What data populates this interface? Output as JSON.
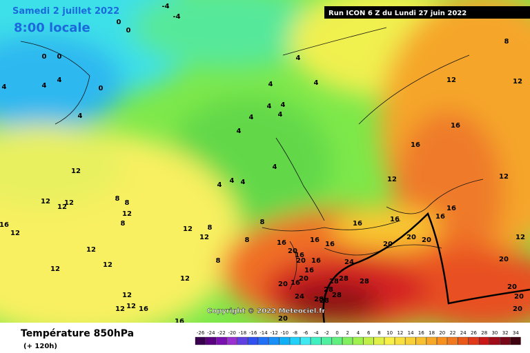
{
  "header": {
    "date": "Samedi 2 juillet 2022",
    "time": "8:00 locale",
    "run": "Run ICON 6 Z du Lundi 27 juin 2022"
  },
  "copyright": "Copyright © 2022 Meteociel.fr",
  "footer": {
    "title": "Température 850hPa",
    "subtitle": "(+ 120h)"
  },
  "legend": {
    "labels": [
      -26,
      -24,
      -22,
      -20,
      -18,
      -16,
      -14,
      -12,
      -10,
      -8,
      -6,
      -4,
      -2,
      0,
      2,
      4,
      6,
      8,
      10,
      12,
      14,
      16,
      18,
      20,
      22,
      24,
      26,
      28,
      30,
      32,
      34
    ]
  },
  "map": {
    "labels": [
      "-4",
      "-4",
      "0",
      "0",
      "0",
      "0",
      "4",
      "4",
      "4",
      "0",
      "4",
      "4",
      "4",
      "4",
      "4",
      "4",
      "4",
      "4",
      "4",
      "4",
      "4",
      "4",
      "4",
      "8",
      "12",
      "12",
      "16",
      "16",
      "12",
      "12",
      "16",
      "16",
      "16",
      "16",
      "12",
      "20",
      "12",
      "12",
      "12",
      "12",
      "8",
      "8",
      "12",
      "8",
      "16",
      "12",
      "12",
      "12",
      "8",
      "8",
      "8",
      "8",
      "12",
      "12",
      "12",
      "12",
      "12",
      "12",
      "12",
      "16",
      "16",
      "16",
      "16",
      "16",
      "20",
      "16",
      "20",
      "16",
      "16",
      "20",
      "20",
      "16",
      "24",
      "20",
      "20",
      "20",
      "28",
      "28",
      "28",
      "28",
      "24",
      "28",
      "28",
      "28",
      "20",
      "20",
      "20",
      "20"
    ]
  }
}
